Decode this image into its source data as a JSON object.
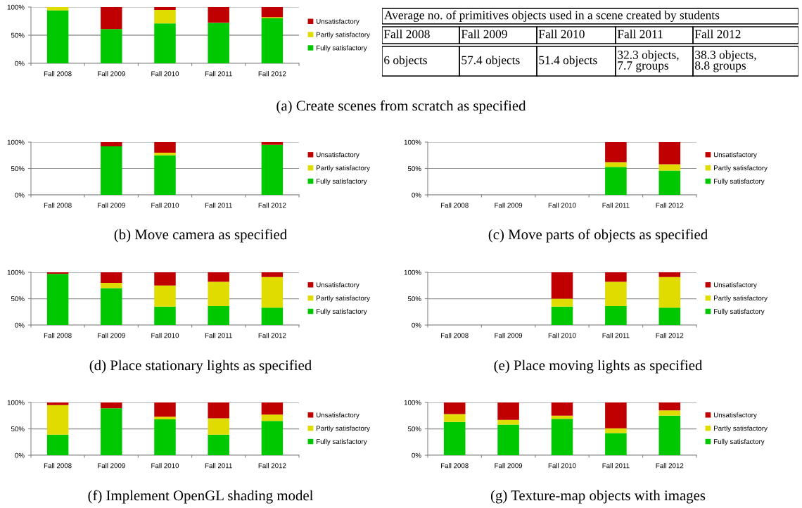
{
  "chart_data": [
    {
      "type": "bar",
      "stacked": true,
      "title": "(a) Create scenes from scratch as specified",
      "categories": [
        "Fall 2008",
        "Fall 2009",
        "Fall 2010",
        "Fall 2011",
        "Fall 2012"
      ],
      "ylim": [
        0,
        100
      ],
      "yticks": [
        {
          "value": 0,
          "label": "0%"
        },
        {
          "value": 50,
          "label": "50%"
        },
        {
          "value": 100,
          "label": "100%"
        }
      ],
      "grid": "y",
      "legend": "right",
      "series": [
        {
          "name": "Fully satisfactory",
          "color": "#00c800",
          "values": [
            94,
            61,
            71,
            72,
            80
          ]
        },
        {
          "name": "Partly satisfactory",
          "color": "#e0dc00",
          "values": [
            6,
            0,
            24,
            0,
            2
          ]
        },
        {
          "name": "Unsatisfactory",
          "color": "#c00000",
          "values": [
            0,
            39,
            5,
            28,
            18
          ]
        }
      ]
    },
    {
      "type": "other",
      "title": "Average no. of primitives objects used in a scene created by students",
      "categories": [
        "Fall 2008",
        "Fall 2009",
        "Fall 2010",
        "Fall 2011",
        "Fall 2012"
      ],
      "annotations": [
        "6 objects",
        "57.4 objects",
        "51.4 objects",
        "32.3 objects,\n7.7 groups",
        "38.3 objects,\n8.8 groups"
      ]
    },
    {
      "type": "bar",
      "stacked": true,
      "title": "(b) Move camera as specified",
      "categories": [
        "Fall 2008",
        "Fall 2009",
        "Fall 2010",
        "Fall 2011",
        "Fall 2012"
      ],
      "ylim": [
        0,
        100
      ],
      "yticks": [
        {
          "value": 0,
          "label": "0%"
        },
        {
          "value": 50,
          "label": "50%"
        },
        {
          "value": 100,
          "label": "100%"
        }
      ],
      "grid": "y",
      "legend": "right",
      "series": [
        {
          "name": "Fully satisfactory",
          "color": "#00c800",
          "values": [
            null,
            92,
            75,
            null,
            95
          ]
        },
        {
          "name": "Partly satisfactory",
          "color": "#e0dc00",
          "values": [
            null,
            0,
            5,
            null,
            0
          ]
        },
        {
          "name": "Unsatisfactory",
          "color": "#c00000",
          "values": [
            null,
            8,
            20,
            null,
            5
          ]
        }
      ]
    },
    {
      "type": "bar",
      "stacked": true,
      "title": "(c) Move parts of objects as specified",
      "categories": [
        "Fall 2008",
        "Fall 2009",
        "Fall 2010",
        "Fall 2011",
        "Fall 2012"
      ],
      "ylim": [
        0,
        100
      ],
      "yticks": [
        {
          "value": 0,
          "label": "0%"
        },
        {
          "value": 50,
          "label": "50%"
        },
        {
          "value": 100,
          "label": "100%"
        }
      ],
      "grid": "y",
      "legend": "right",
      "series": [
        {
          "name": "Fully satisfactory",
          "color": "#00c800",
          "values": [
            null,
            null,
            null,
            53,
            46
          ]
        },
        {
          "name": "Partly satisfactory",
          "color": "#e0dc00",
          "values": [
            null,
            null,
            null,
            9,
            12
          ]
        },
        {
          "name": "Unsatisfactory",
          "color": "#c00000",
          "values": [
            null,
            null,
            null,
            38,
            42
          ]
        }
      ]
    },
    {
      "type": "bar",
      "stacked": true,
      "title": "(d) Place stationary lights as specified",
      "categories": [
        "Fall 2008",
        "Fall 2009",
        "Fall 2010",
        "Fall 2011",
        "Fall 2012"
      ],
      "ylim": [
        0,
        100
      ],
      "yticks": [
        {
          "value": 0,
          "label": "0%"
        },
        {
          "value": 50,
          "label": "50%"
        },
        {
          "value": 100,
          "label": "100%"
        }
      ],
      "grid": "y",
      "legend": "right",
      "series": [
        {
          "name": "Fully satisfactory",
          "color": "#00c800",
          "values": [
            97,
            70,
            35,
            36,
            33
          ]
        },
        {
          "name": "Partly satisfactory",
          "color": "#e0dc00",
          "values": [
            0,
            10,
            40,
            46,
            58
          ]
        },
        {
          "name": "Unsatisfactory",
          "color": "#c00000",
          "values": [
            3,
            20,
            25,
            18,
            9
          ]
        }
      ]
    },
    {
      "type": "bar",
      "stacked": true,
      "title": "(e) Place moving lights as specified",
      "categories": [
        "Fall 2008",
        "Fall 2009",
        "Fall 2010",
        "Fall 2011",
        "Fall 2012"
      ],
      "ylim": [
        0,
        100
      ],
      "yticks": [
        {
          "value": 0,
          "label": "0%"
        },
        {
          "value": 50,
          "label": "50%"
        },
        {
          "value": 100,
          "label": "100%"
        }
      ],
      "grid": "y",
      "legend": "right",
      "series": [
        {
          "name": "Fully satisfactory",
          "color": "#00c800",
          "values": [
            null,
            null,
            35,
            36,
            33
          ]
        },
        {
          "name": "Partly satisfactory",
          "color": "#e0dc00",
          "values": [
            null,
            null,
            15,
            46,
            58
          ]
        },
        {
          "name": "Unsatisfactory",
          "color": "#c00000",
          "values": [
            null,
            null,
            50,
            18,
            9
          ]
        }
      ]
    },
    {
      "type": "bar",
      "stacked": true,
      "title": "(f) Implement OpenGL shading model",
      "categories": [
        "Fall 2008",
        "Fall 2009",
        "Fall 2010",
        "Fall 2011",
        "Fall 2012"
      ],
      "ylim": [
        0,
        100
      ],
      "yticks": [
        {
          "value": 0,
          "label": "0%"
        },
        {
          "value": 50,
          "label": "50%"
        },
        {
          "value": 100,
          "label": "100%"
        }
      ],
      "grid": "y",
      "legend": "right",
      "series": [
        {
          "name": "Fully satisfactory",
          "color": "#00c800",
          "values": [
            39,
            89,
            68,
            39,
            65
          ]
        },
        {
          "name": "Partly satisfactory",
          "color": "#e0dc00",
          "values": [
            56,
            0,
            5,
            31,
            12
          ]
        },
        {
          "name": "Unsatisfactory",
          "color": "#c00000",
          "values": [
            5,
            11,
            27,
            30,
            23
          ]
        }
      ]
    },
    {
      "type": "bar",
      "stacked": true,
      "title": "(g) Texture-map objects with images",
      "categories": [
        "Fall 2008",
        "Fall 2009",
        "Fall 2010",
        "Fall 2011",
        "Fall 2012"
      ],
      "ylim": [
        0,
        100
      ],
      "yticks": [
        {
          "value": 0,
          "label": "0%"
        },
        {
          "value": 50,
          "label": "50%"
        },
        {
          "value": 100,
          "label": "100%"
        }
      ],
      "grid": "y",
      "legend": "right",
      "series": [
        {
          "name": "Fully satisfactory",
          "color": "#00c800",
          "values": [
            63,
            58,
            69,
            42,
            75
          ]
        },
        {
          "name": "Partly satisfactory",
          "color": "#e0dc00",
          "values": [
            15,
            9,
            6,
            9,
            10
          ]
        },
        {
          "name": "Unsatisfactory",
          "color": "#c00000",
          "values": [
            22,
            33,
            25,
            49,
            15
          ]
        }
      ]
    }
  ]
}
